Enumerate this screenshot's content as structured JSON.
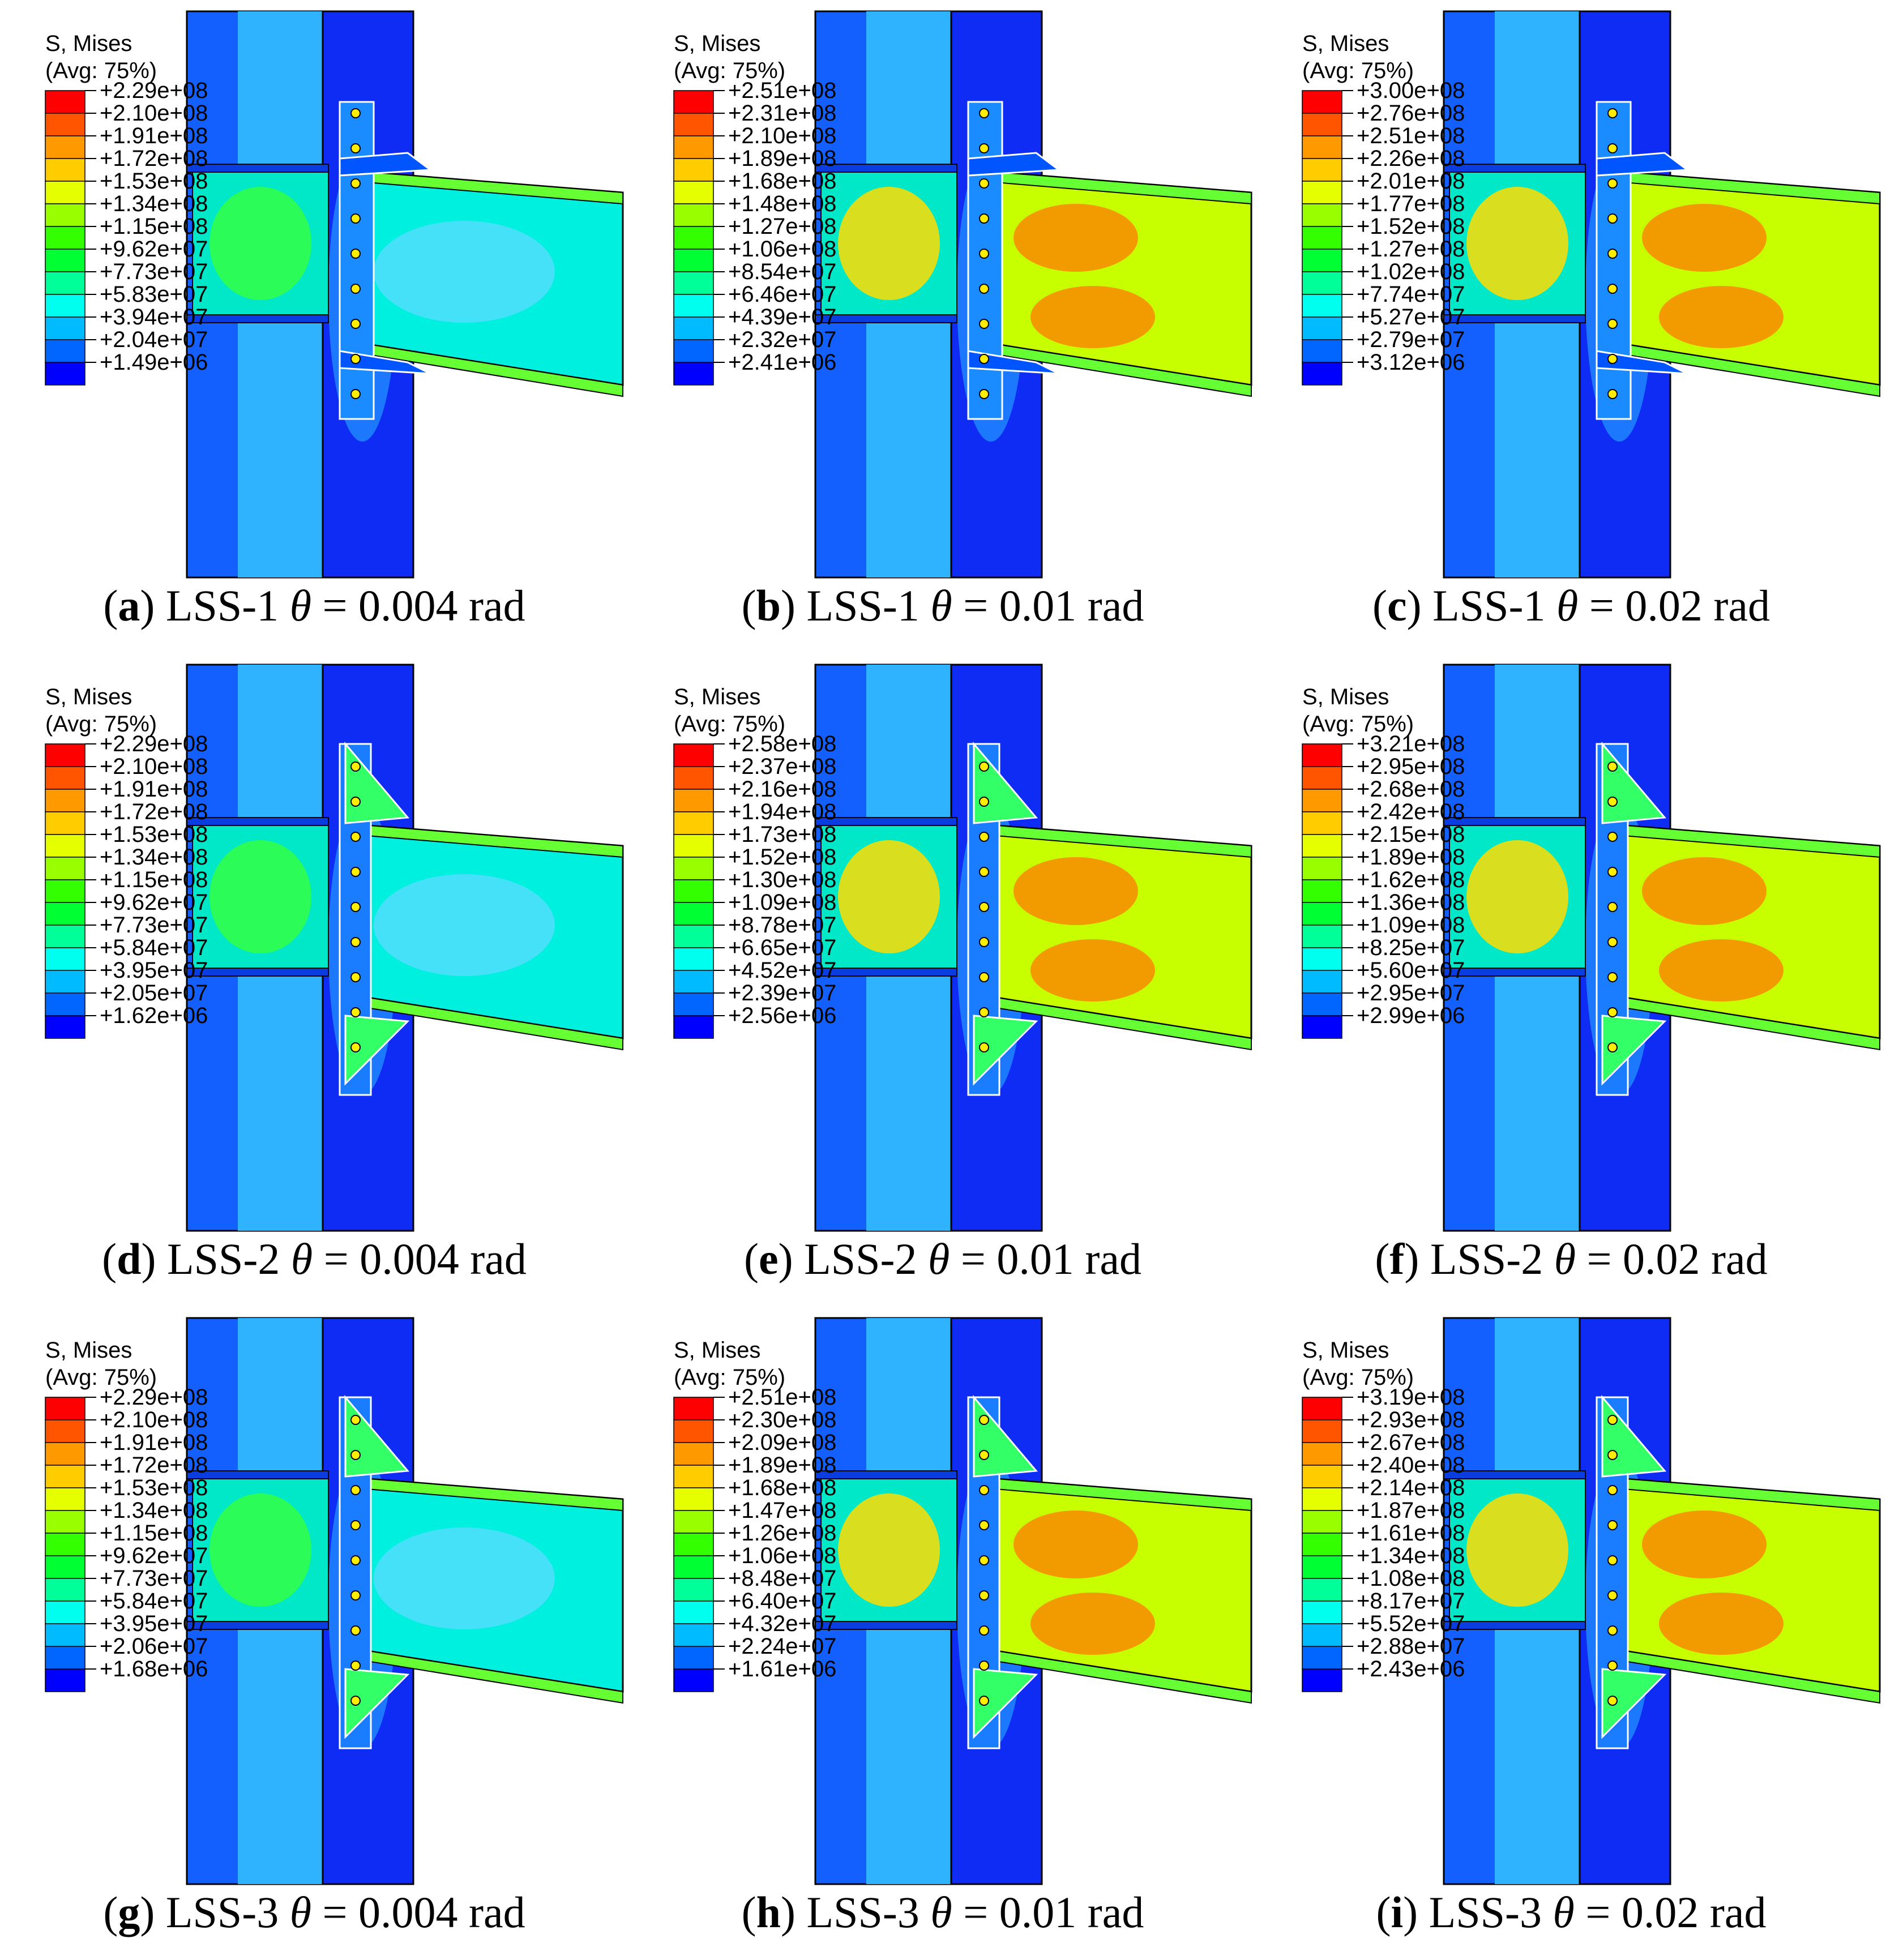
{
  "legend_title": "S, Mises",
  "legend_avg": "(Avg: 75%)",
  "colormap": [
    "#ff0000",
    "#ff5500",
    "#ff9900",
    "#ffcc00",
    "#e6ff00",
    "#99ff00",
    "#33ff00",
    "#00ff33",
    "#00ff99",
    "#00ffee",
    "#00bbff",
    "#0066ff",
    "#0000ff"
  ],
  "panels": [
    {
      "letter": "a",
      "specimen": "LSS-1",
      "theta": "0.004",
      "unit": "rad",
      "style": "angle",
      "legend": [
        "+2.29e+08",
        "+2.10e+08",
        "+1.91e+08",
        "+1.72e+08",
        "+1.53e+08",
        "+1.34e+08",
        "+1.15e+08",
        "+9.62e+07",
        "+7.73e+07",
        "+5.83e+07",
        "+3.94e+07",
        "+2.04e+07",
        "+1.49e+06"
      ]
    },
    {
      "letter": "b",
      "specimen": "LSS-1",
      "theta": "0.01",
      "unit": "rad",
      "style": "angle",
      "legend": [
        "+2.51e+08",
        "+2.31e+08",
        "+2.10e+08",
        "+1.89e+08",
        "+1.68e+08",
        "+1.48e+08",
        "+1.27e+08",
        "+1.06e+08",
        "+8.54e+07",
        "+6.46e+07",
        "+4.39e+07",
        "+2.32e+07",
        "+2.41e+06"
      ]
    },
    {
      "letter": "c",
      "specimen": "LSS-1",
      "theta": "0.02",
      "unit": "rad",
      "style": "angle",
      "legend": [
        "+3.00e+08",
        "+2.76e+08",
        "+2.51e+08",
        "+2.26e+08",
        "+2.01e+08",
        "+1.77e+08",
        "+1.52e+08",
        "+1.27e+08",
        "+1.02e+08",
        "+7.74e+07",
        "+5.27e+07",
        "+2.79e+07",
        "+3.12e+06"
      ]
    },
    {
      "letter": "d",
      "specimen": "LSS-2",
      "theta": "0.004",
      "unit": "rad",
      "style": "stiff",
      "legend": [
        "+2.29e+08",
        "+2.10e+08",
        "+1.91e+08",
        "+1.72e+08",
        "+1.53e+08",
        "+1.34e+08",
        "+1.15e+08",
        "+9.62e+07",
        "+7.73e+07",
        "+5.84e+07",
        "+3.95e+07",
        "+2.05e+07",
        "+1.62e+06"
      ]
    },
    {
      "letter": "e",
      "specimen": "LSS-2",
      "theta": "0.01",
      "unit": "rad",
      "style": "stiff",
      "legend": [
        "+2.58e+08",
        "+2.37e+08",
        "+2.16e+08",
        "+1.94e+08",
        "+1.73e+08",
        "+1.52e+08",
        "+1.30e+08",
        "+1.09e+08",
        "+8.78e+07",
        "+6.65e+07",
        "+4.52e+07",
        "+2.39e+07",
        "+2.56e+06"
      ]
    },
    {
      "letter": "f",
      "specimen": "LSS-2",
      "theta": "0.02",
      "unit": "rad",
      "style": "stiff",
      "legend": [
        "+3.21e+08",
        "+2.95e+08",
        "+2.68e+08",
        "+2.42e+08",
        "+2.15e+08",
        "+1.89e+08",
        "+1.62e+08",
        "+1.36e+08",
        "+1.09e+08",
        "+8.25e+07",
        "+5.60e+07",
        "+2.95e+07",
        "+2.99e+06"
      ]
    },
    {
      "letter": "g",
      "specimen": "LSS-3",
      "theta": "0.004",
      "unit": "rad",
      "style": "stiff",
      "legend": [
        "+2.29e+08",
        "+2.10e+08",
        "+1.91e+08",
        "+1.72e+08",
        "+1.53e+08",
        "+1.34e+08",
        "+1.15e+08",
        "+9.62e+07",
        "+7.73e+07",
        "+5.84e+07",
        "+3.95e+07",
        "+2.06e+07",
        "+1.68e+06"
      ]
    },
    {
      "letter": "h",
      "specimen": "LSS-3",
      "theta": "0.01",
      "unit": "rad",
      "style": "stiff",
      "legend": [
        "+2.51e+08",
        "+2.30e+08",
        "+2.09e+08",
        "+1.89e+08",
        "+1.68e+08",
        "+1.47e+08",
        "+1.26e+08",
        "+1.06e+08",
        "+8.48e+07",
        "+6.40e+07",
        "+4.32e+07",
        "+2.24e+07",
        "+1.61e+06"
      ]
    },
    {
      "letter": "i",
      "specimen": "LSS-3",
      "theta": "0.02",
      "unit": "rad",
      "style": "stiff",
      "legend": [
        "+3.19e+08",
        "+2.93e+08",
        "+2.67e+08",
        "+2.40e+08",
        "+2.14e+08",
        "+1.87e+08",
        "+1.61e+08",
        "+1.34e+08",
        "+1.08e+08",
        "+8.17e+07",
        "+5.52e+07",
        "+2.88e+07",
        "+2.43e+06"
      ]
    }
  ]
}
